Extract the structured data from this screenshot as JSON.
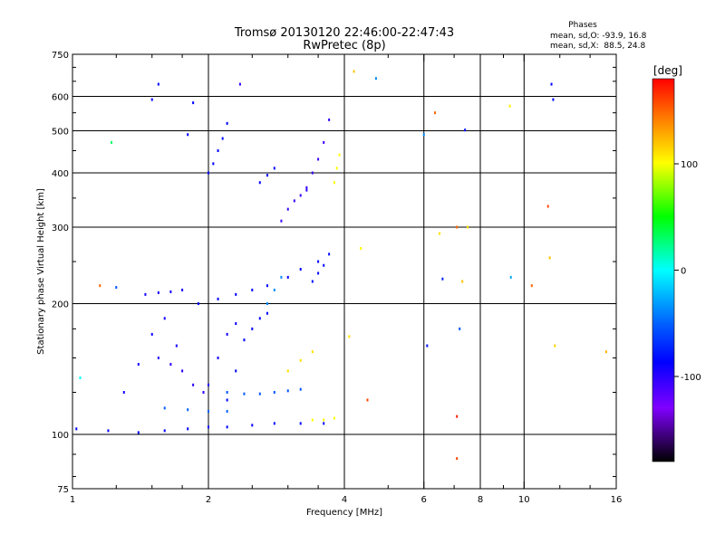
{
  "chart_data": {
    "type": "scatter",
    "title": "Tromsø 20130120 22:46:00-22:47:43",
    "subtitle": "RwPretec (8p)",
    "xlabel": "Frequency [MHz]",
    "ylabel": "Stationary phase Virtual Height [km]",
    "xscale": "log",
    "yscale": "log",
    "xlim": [
      1,
      16
    ],
    "ylim": [
      75,
      750
    ],
    "xticks": [
      "1",
      "2",
      "4",
      "6",
      "8",
      "10",
      "16"
    ],
    "yticks": [
      "75",
      "100",
      "200",
      "300",
      "400",
      "500",
      "600",
      "750"
    ],
    "grid": true,
    "stats": {
      "heading": "Phases",
      "line_o": "mean, sd,O: -93.9, 16.8",
      "line_x": "mean, sd,X:  88.5, 24.8"
    },
    "colorbar": {
      "label": "[deg]",
      "range": [
        -180,
        180
      ],
      "ticks": [
        "100",
        "0",
        "-100"
      ],
      "tick_values": [
        100,
        0,
        -100
      ]
    },
    "traces": [
      {
        "f": [
          1.02,
          1.2,
          1.4,
          1.6,
          1.8,
          2.0,
          2.2,
          2.5,
          2.8,
          3.2,
          3.6
        ],
        "h": [
          103,
          102,
          101,
          102,
          103,
          104,
          104,
          105,
          106,
          106,
          106
        ],
        "phase": -95
      },
      {
        "f": [
          1.3,
          1.4,
          1.5,
          1.6,
          1.7
        ],
        "h": [
          125,
          145,
          170,
          185,
          160
        ],
        "phase": -100
      },
      {
        "f": [
          1.55,
          1.65,
          1.75,
          1.85,
          1.95
        ],
        "h": [
          150,
          145,
          140,
          130,
          125
        ],
        "phase": -105
      },
      {
        "f": [
          2.2,
          2.3,
          2.4,
          2.5,
          2.6,
          2.7
        ],
        "h": [
          120,
          140,
          165,
          175,
          185,
          190
        ],
        "phase": -95
      },
      {
        "f": [
          2.0,
          2.1,
          2.2,
          2.3
        ],
        "h": [
          130,
          150,
          170,
          180
        ],
        "phase": -100
      },
      {
        "f": [
          1.45,
          1.55,
          1.65,
          1.75
        ],
        "h": [
          210,
          212,
          213,
          215
        ],
        "phase": -100
      },
      {
        "f": [
          1.9,
          2.1,
          2.3,
          2.5,
          2.7,
          3.0,
          3.2,
          3.5
        ],
        "h": [
          200,
          205,
          210,
          215,
          220,
          230,
          240,
          250
        ],
        "phase": -95
      },
      {
        "f": [
          2.7,
          2.8,
          2.9
        ],
        "h": [
          200,
          215,
          230
        ],
        "phase": -40
      },
      {
        "f": [
          3.4,
          3.5,
          3.6,
          3.7
        ],
        "h": [
          225,
          235,
          245,
          260
        ],
        "phase": -90
      },
      {
        "f": [
          2.9,
          3.0,
          3.1,
          3.2,
          3.3
        ],
        "h": [
          310,
          330,
          345,
          355,
          365
        ],
        "phase": -110
      },
      {
        "f": [
          3.3,
          3.4,
          3.5,
          3.6,
          3.7
        ],
        "h": [
          370,
          400,
          430,
          470,
          530
        ],
        "phase": -110
      },
      {
        "f": [
          2.0,
          2.05,
          2.1,
          2.15,
          2.2
        ],
        "h": [
          400,
          420,
          450,
          480,
          520
        ],
        "phase": -95
      },
      {
        "f": [
          1.5,
          1.55
        ],
        "h": [
          590,
          640
        ],
        "phase": -95
      },
      {
        "f": [
          1.8,
          1.85
        ],
        "h": [
          490,
          580
        ],
        "phase": -95
      },
      {
        "f": [
          2.6,
          2.7,
          2.8
        ],
        "h": [
          380,
          395,
          410
        ],
        "phase": -95
      },
      {
        "f": [
          2.2,
          2.4,
          2.6,
          2.8,
          3.0,
          3.2
        ],
        "h": [
          125,
          124,
          124,
          125,
          126,
          127
        ],
        "phase": -60
      },
      {
        "f": [
          1.6,
          1.8,
          2.0,
          2.2
        ],
        "h": [
          115,
          114,
          113,
          113
        ],
        "phase": -55
      },
      {
        "f": [
          3.4,
          3.6,
          3.8
        ],
        "h": [
          108,
          108,
          109
        ],
        "phase": 100
      },
      {
        "f": [
          3.0,
          3.2,
          3.4
        ],
        "h": [
          140,
          148,
          155
        ],
        "phase": 110
      },
      {
        "f": [
          3.8,
          3.85,
          3.9
        ],
        "h": [
          380,
          410,
          440
        ],
        "phase": 100
      }
    ],
    "points": [
      {
        "f": 1.04,
        "h": 135,
        "phase": 0
      },
      {
        "f": 1.15,
        "h": 220,
        "phase": 150
      },
      {
        "f": 1.25,
        "h": 218,
        "phase": -60
      },
      {
        "f": 1.22,
        "h": 470,
        "phase": 30
      },
      {
        "f": 2.35,
        "h": 640,
        "phase": -110
      },
      {
        "f": 4.2,
        "h": 685,
        "phase": 120
      },
      {
        "f": 4.7,
        "h": 660,
        "phase": -40
      },
      {
        "f": 4.1,
        "h": 168,
        "phase": 110
      },
      {
        "f": 4.35,
        "h": 268,
        "phase": 100
      },
      {
        "f": 4.5,
        "h": 120,
        "phase": 160
      },
      {
        "f": 6.0,
        "h": 490,
        "phase": -40
      },
      {
        "f": 6.1,
        "h": 160,
        "phase": -90
      },
      {
        "f": 6.35,
        "h": 550,
        "phase": 150
      },
      {
        "f": 6.5,
        "h": 290,
        "phase": 110
      },
      {
        "f": 6.6,
        "h": 228,
        "phase": -80
      },
      {
        "f": 7.1,
        "h": 300,
        "phase": 150
      },
      {
        "f": 7.1,
        "h": 110,
        "phase": 170
      },
      {
        "f": 7.1,
        "h": 88,
        "phase": 160
      },
      {
        "f": 7.2,
        "h": 175,
        "phase": -60
      },
      {
        "f": 7.3,
        "h": 225,
        "phase": 120
      },
      {
        "f": 7.4,
        "h": 502,
        "phase": -90
      },
      {
        "f": 7.5,
        "h": 300,
        "phase": 110
      },
      {
        "f": 9.3,
        "h": 570,
        "phase": 105
      },
      {
        "f": 9.35,
        "h": 230,
        "phase": -30
      },
      {
        "f": 10.4,
        "h": 220,
        "phase": 150
      },
      {
        "f": 11.3,
        "h": 335,
        "phase": 160
      },
      {
        "f": 11.4,
        "h": 255,
        "phase": 120
      },
      {
        "f": 11.5,
        "h": 640,
        "phase": -95
      },
      {
        "f": 11.6,
        "h": 590,
        "phase": -95
      },
      {
        "f": 11.7,
        "h": 160,
        "phase": 115
      },
      {
        "f": 15.2,
        "h": 155,
        "phase": 125
      }
    ]
  }
}
